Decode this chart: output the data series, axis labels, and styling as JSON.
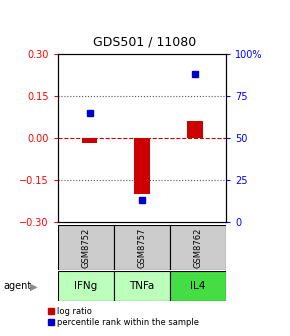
{
  "title": "GDS501 / 11080",
  "samples": [
    "GSM8752",
    "GSM8757",
    "GSM8762"
  ],
  "agents": [
    "IFNg",
    "TNFa",
    "IL4"
  ],
  "log_ratios": [
    -0.02,
    -0.2,
    0.06
  ],
  "percentile_ranks": [
    65,
    13,
    88
  ],
  "ylim_left": [
    -0.3,
    0.3
  ],
  "ylim_right": [
    0,
    100
  ],
  "yticks_left": [
    -0.3,
    -0.15,
    0,
    0.15,
    0.3
  ],
  "yticks_right": [
    0,
    25,
    50,
    75,
    100
  ],
  "ytick_labels_right": [
    "0",
    "25",
    "50",
    "75",
    "100%"
  ],
  "bar_color_log": "#cc0000",
  "bar_color_pct": "#0000cc",
  "hline_color": "#cc0000",
  "dotted_color": "#555555",
  "sample_bg": "#cccccc",
  "agent_colors": [
    "#bbffbb",
    "#bbffbb",
    "#44dd44"
  ],
  "title_fontsize": 9,
  "tick_fontsize": 7
}
